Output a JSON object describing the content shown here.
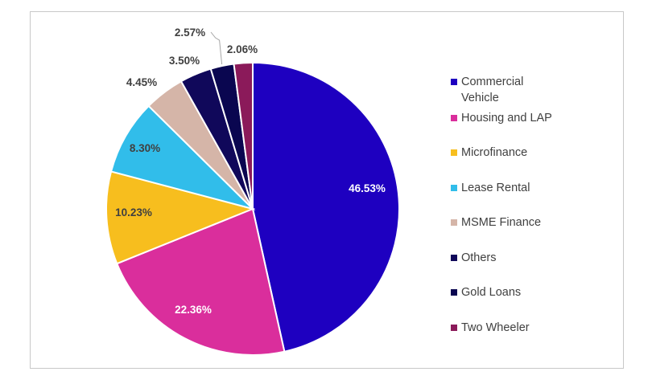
{
  "chart_data": {
    "type": "pie",
    "title": "",
    "slices": [
      {
        "label": "Commercial Vehicle",
        "value": 46.53,
        "value_label": "46.53%",
        "color": "#1E00C0",
        "label_color": "#ffffff"
      },
      {
        "label": "Housing and LAP",
        "value": 22.36,
        "value_label": "22.36%",
        "color": "#DA2E9C",
        "label_color": "#ffffff"
      },
      {
        "label": "Microfinance",
        "value": 10.23,
        "value_label": "10.23%",
        "color": "#F7BE1E",
        "label_color": "#404040"
      },
      {
        "label": "Lease Rental",
        "value": 8.3,
        "value_label": "8.30%",
        "color": "#31BDEA",
        "label_color": "#404040"
      },
      {
        "label": "MSME Finance",
        "value": 4.45,
        "value_label": "4.45%",
        "color": "#D5B5A8",
        "label_color": "#404040"
      },
      {
        "label": "Others",
        "value": 3.5,
        "value_label": "3.50%",
        "color": "#10085A",
        "label_color": "#404040"
      },
      {
        "label": "Gold Loans",
        "value": 2.57,
        "value_label": "2.57%",
        "color": "#0A0650",
        "label_color": "#404040"
      },
      {
        "label": "Two Wheeler",
        "value": 2.06,
        "value_label": "2.06%",
        "color": "#8B1A5A",
        "label_color": "#404040"
      }
    ],
    "legend_position": "right",
    "slice_border_color": "#ffffff"
  }
}
